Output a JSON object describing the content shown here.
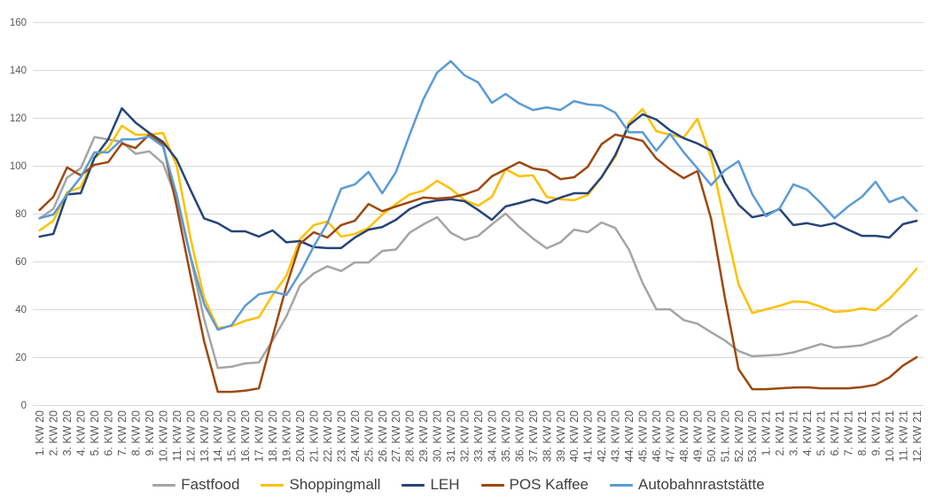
{
  "chart_data": {
    "type": "line",
    "ylim": [
      0,
      160
    ],
    "yticks": [
      0,
      20,
      40,
      60,
      80,
      100,
      120,
      140,
      160
    ],
    "grid": true,
    "legend_position": "bottom",
    "categories": [
      "1. KW 20",
      "2. KW 20",
      "3. KW 20",
      "4. KW 20",
      "5. KW 20",
      "6. KW 20",
      "7. KW 20",
      "8. KW 20",
      "9. KW 20",
      "10. KW 20",
      "11. KW 20",
      "12. KW 20",
      "13. KW 20",
      "14. KW 20",
      "15. KW 20",
      "16. KW 20",
      "17. KW 20",
      "18. KW 20",
      "19. KW 20",
      "20. KW 20",
      "21. KW 20",
      "22. KW 20",
      "23. KW 20",
      "24. KW 20",
      "25. KW 20",
      "26. KW 20",
      "27. KW 20",
      "28. KW 20",
      "29. KW 20",
      "30. KW 20",
      "31. KW 20",
      "32. KW 20",
      "33. KW 20",
      "34. KW 20",
      "35. KW 20",
      "36. KW 20",
      "37. KW 20",
      "38. KW 20",
      "39. KW 20",
      "40. KW 20",
      "41. KW 20",
      "42. KW 20",
      "43. KW 20",
      "44. KW 20",
      "45. KW 20",
      "46. KW 20",
      "47. KW 20",
      "48. KW 20",
      "49. KW 20",
      "50. KW 20",
      "51. KW 20",
      "52. KW 20",
      "53. KW 20",
      "1. KW 21",
      "2. KW 21",
      "3. KW 21",
      "4. KW 21",
      "5. KW 21",
      "6. KW 21",
      "7. KW 21",
      "8. KW 21",
      "9. KW 21",
      "10. KW 21",
      "11. KW 21",
      "12. KW 21"
    ],
    "series": [
      {
        "name": "Fastfood",
        "color": "#A5A5A5",
        "values": [
          78,
          82,
          95,
          99,
          112,
          111,
          110,
          105,
          106,
          101,
          86,
          62,
          36,
          15.5,
          16,
          17.4,
          17.8,
          27,
          37,
          50,
          55,
          58,
          56,
          59.6,
          59.6,
          64.4,
          65,
          72,
          75.5,
          78.5,
          72,
          69,
          70.7,
          75.5,
          80,
          74.4,
          69.6,
          65.5,
          68,
          73.3,
          72.2,
          76.3,
          74,
          65,
          51,
          40,
          40,
          35.5,
          34,
          30.4,
          27,
          22.6,
          20.4,
          20.7,
          21,
          22,
          23.7,
          25.5,
          24,
          24.4,
          25,
          27,
          29.2,
          33.7,
          37.4
        ]
      },
      {
        "name": "Shoppingmall",
        "color": "#FFC000",
        "values": [
          73,
          77,
          88.9,
          91,
          103.3,
          107.4,
          116.7,
          113,
          113,
          113.7,
          100,
          70,
          44.8,
          32.2,
          33,
          35.2,
          36.7,
          46,
          54,
          69.3,
          75.2,
          76.7,
          70.4,
          71.5,
          74,
          79.6,
          84,
          88,
          89.6,
          93.7,
          90.4,
          85.6,
          83.3,
          87,
          98.5,
          95.6,
          96,
          87,
          86,
          85.6,
          87.8,
          95.2,
          103.7,
          118,
          123.7,
          114.4,
          113,
          111.8,
          119.6,
          103.3,
          76,
          50.4,
          38.5,
          40,
          41.5,
          43.3,
          43,
          41.1,
          38.9,
          39.3,
          40.4,
          39.6,
          44.4,
          50.4,
          57
        ]
      },
      {
        "name": "LEH",
        "color": "#264478",
        "values": [
          70.4,
          71.5,
          88,
          88.5,
          103.3,
          111,
          124,
          118,
          113.7,
          110,
          102.6,
          90,
          78,
          76,
          72.6,
          72.6,
          70.4,
          73,
          68,
          68.5,
          66,
          65.6,
          65.6,
          70,
          73.3,
          74.4,
          77.4,
          81.9,
          84.4,
          85.5,
          86,
          85.2,
          81.5,
          77.4,
          83,
          84.4,
          86,
          84.4,
          86.7,
          88.5,
          88.5,
          95.2,
          104.4,
          117,
          121.5,
          119.3,
          114.8,
          111.5,
          109.3,
          106.3,
          93,
          83.7,
          78.5,
          79.6,
          81.9,
          75.2,
          76,
          74.8,
          76,
          73.3,
          70.7,
          70.7,
          70,
          75.6,
          77
        ]
      },
      {
        "name": "POS Kaffee",
        "color": "#9E480E",
        "values": [
          81.5,
          87,
          99.3,
          96,
          100.4,
          101.5,
          109.3,
          107.4,
          113,
          109,
          83,
          54.4,
          26.7,
          5.5,
          5.5,
          6,
          7,
          28.5,
          49.6,
          67.4,
          72.2,
          70,
          75.2,
          77,
          84,
          81,
          83,
          84.8,
          86.7,
          86.3,
          86.7,
          88,
          90,
          95.6,
          98.5,
          101.5,
          98.9,
          98,
          94.4,
          95.2,
          99.6,
          109,
          113,
          111.8,
          110.4,
          103,
          98.5,
          94.8,
          97.8,
          77.8,
          45,
          15,
          6.6,
          6.6,
          7,
          7.3,
          7.4,
          7,
          7,
          7,
          7.5,
          8.5,
          11.5,
          16.5,
          20
        ]
      },
      {
        "name": "Autobahnraststätte",
        "color": "#5B9BD5",
        "values": [
          78.1,
          79.6,
          88,
          95.2,
          105.6,
          105.6,
          111,
          111,
          112.2,
          108.1,
          87.8,
          62.2,
          42.2,
          31.5,
          33.3,
          41.5,
          46.3,
          47.4,
          46,
          55.2,
          66.3,
          76,
          90.4,
          92.2,
          97.4,
          88.5,
          97.4,
          113,
          127.8,
          138.9,
          143.7,
          137.8,
          134.8,
          126.3,
          130,
          126,
          123.3,
          124.4,
          123.3,
          127,
          125.6,
          125.2,
          122.2,
          114,
          114,
          106.3,
          113.3,
          105.6,
          98.9,
          91.9,
          98.1,
          101.9,
          88.1,
          78.9,
          82.2,
          92.2,
          90,
          84.4,
          78.1,
          83,
          87,
          93.3,
          84.8,
          87,
          81.1
        ]
      }
    ]
  }
}
